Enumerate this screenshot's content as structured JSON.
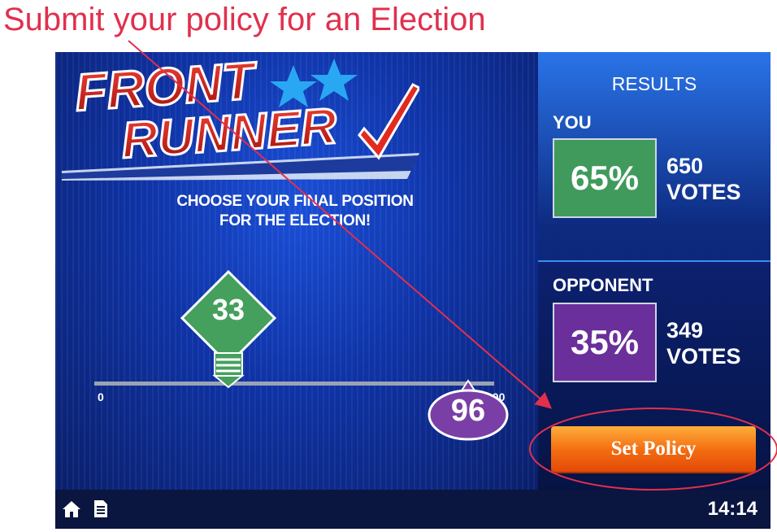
{
  "instruction": "Submit your policy for an Election",
  "game": {
    "logo": {
      "line1": "FRONT",
      "line2": "RUNNER"
    },
    "prompt_line1": "CHOOSE YOUR FINAL POSITION",
    "prompt_line2": "FOR THE ELECTION!",
    "slider": {
      "min_label": "0",
      "max_label": "100",
      "player_position": "33",
      "opponent_position": "96"
    }
  },
  "results": {
    "title": "RESULTS",
    "you": {
      "label": "YOU",
      "percent": "65%",
      "votes": "650",
      "votes_label": "VOTES",
      "color": "#3f9a5c"
    },
    "opponent": {
      "label": "OPPONENT",
      "percent": "35%",
      "votes": "349",
      "votes_label": "VOTES",
      "color": "#6a2f9a"
    },
    "set_policy_label": "Set Policy"
  },
  "bottom_bar": {
    "clock": "14:14",
    "icons": [
      "home-icon",
      "document-icon"
    ]
  },
  "annotation_color": "#e0304e"
}
